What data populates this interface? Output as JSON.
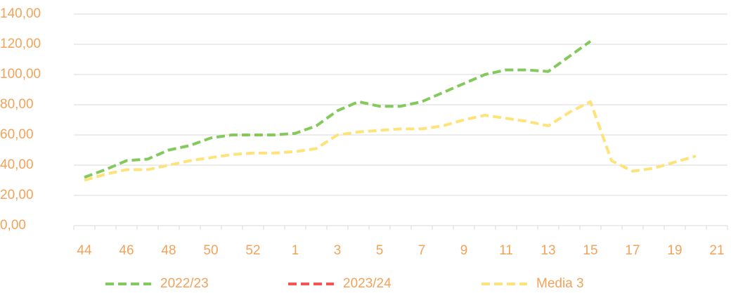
{
  "chart_data": {
    "type": "line",
    "categories": [
      "44",
      null,
      "46",
      null,
      "48",
      null,
      "50",
      null,
      "52",
      null,
      "1",
      null,
      "3",
      null,
      "5",
      null,
      "7",
      null,
      "9",
      null,
      "11",
      null,
      "13",
      null,
      "15",
      null,
      "17",
      null,
      "19",
      null,
      "21"
    ],
    "series": [
      {
        "name": "2022/23",
        "color": "#84c95c",
        "values": [
          32,
          37,
          43,
          44,
          50,
          53,
          58,
          60,
          60,
          60,
          61,
          66,
          76,
          82,
          79,
          79,
          82,
          88,
          94,
          100,
          103,
          103,
          102,
          112,
          122,
          null,
          null,
          null,
          null,
          null,
          null
        ]
      },
      {
        "name": "2023/24",
        "color": "#f25555",
        "values": [
          null,
          null,
          null,
          null,
          null,
          null,
          null,
          null,
          null,
          null,
          null,
          null,
          null,
          null,
          null,
          null,
          null,
          null,
          null,
          null,
          null,
          null,
          null,
          null,
          null,
          null,
          null,
          null,
          null,
          null,
          null
        ]
      },
      {
        "name": "Media 3",
        "color": "#fde37a",
        "values": [
          30,
          34,
          37,
          37,
          40,
          43,
          45,
          47,
          48,
          48,
          49,
          51,
          60,
          62,
          63,
          64,
          64,
          66,
          70,
          73,
          71,
          69,
          66,
          75,
          82,
          43,
          36,
          38,
          42,
          46,
          null
        ]
      }
    ],
    "ylim": [
      0,
      140
    ],
    "yticks": [
      {
        "value": 0,
        "label": "0,00"
      },
      {
        "value": 20,
        "label": "20,00"
      },
      {
        "value": 40,
        "label": "40,00"
      },
      {
        "value": 60,
        "label": "60,00"
      },
      {
        "value": 80,
        "label": "80,00"
      },
      {
        "value": 100,
        "label": "100,00"
      },
      {
        "value": 120,
        "label": "120,00"
      },
      {
        "value": 140,
        "label": "140,00"
      }
    ],
    "grid": true,
    "legend": "bottom"
  }
}
